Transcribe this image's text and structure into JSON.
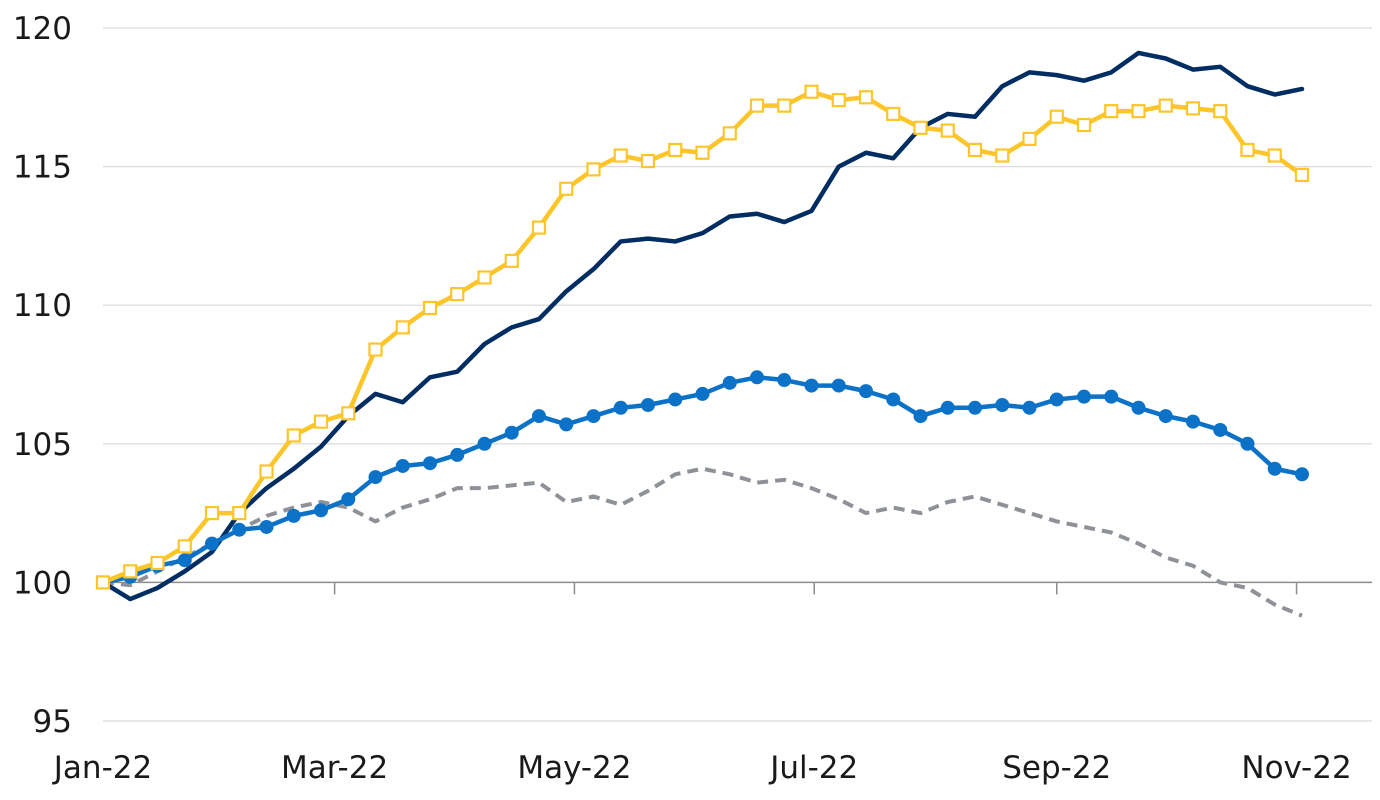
{
  "chart_data": {
    "type": "line",
    "title": "",
    "xlabel": "",
    "ylabel": "",
    "ylim": [
      95,
      120
    ],
    "yticks": [
      95,
      100,
      105,
      110,
      115,
      120
    ],
    "grid": "horizontal",
    "baseline_value": 100,
    "x_tick_labels": [
      "Jan-22",
      "Mar-22",
      "May-22",
      "Jul-22",
      "Sep-22",
      "Nov-22"
    ],
    "x_tick_label_index": [
      0,
      8.5,
      17.3,
      26.1,
      35,
      43.8
    ],
    "x_tick_mark_index": [
      8.5,
      17.3,
      26.1,
      35,
      43.8
    ],
    "x_index_max": 45,
    "series": [
      {
        "color": "#002d62",
        "style": "solid",
        "marker": "none",
        "values": [
          100.0,
          99.4,
          99.8,
          100.4,
          101.1,
          102.5,
          103.4,
          104.1,
          104.9,
          106.0,
          106.8,
          106.5,
          107.4,
          107.6,
          108.6,
          109.2,
          109.5,
          110.5,
          111.3,
          112.3,
          112.4,
          112.3,
          112.6,
          113.2,
          113.3,
          113.0,
          113.4,
          115.0,
          115.5,
          115.3,
          116.4,
          116.9,
          116.8,
          117.9,
          118.4,
          118.3,
          118.1,
          118.4,
          119.1,
          118.9,
          118.5,
          118.6,
          117.9,
          117.6,
          117.8
        ]
      },
      {
        "color": "#fcc52a",
        "style": "solid",
        "marker": "open-square",
        "values": [
          100.0,
          100.4,
          100.7,
          101.3,
          102.5,
          102.5,
          104.0,
          105.3,
          105.8,
          106.1,
          108.4,
          109.2,
          109.9,
          110.4,
          111.0,
          111.6,
          112.8,
          114.2,
          114.9,
          115.4,
          115.2,
          115.6,
          115.5,
          116.2,
          117.2,
          117.2,
          117.7,
          117.4,
          117.5,
          116.9,
          116.4,
          116.3,
          115.6,
          115.4,
          116.0,
          116.8,
          116.5,
          117.0,
          117.0,
          117.2,
          117.1,
          117.0,
          115.6,
          115.4,
          114.7
        ]
      },
      {
        "color": "#0b72c7",
        "style": "solid",
        "marker": "filled-circle",
        "values": [
          100.0,
          100.2,
          100.6,
          100.8,
          101.4,
          101.9,
          102.0,
          102.4,
          102.6,
          103.0,
          103.8,
          104.2,
          104.3,
          104.6,
          105.0,
          105.4,
          106.0,
          105.7,
          106.0,
          106.3,
          106.4,
          106.6,
          106.8,
          107.2,
          107.4,
          107.3,
          107.1,
          107.1,
          106.9,
          106.6,
          106.0,
          106.3,
          106.3,
          106.4,
          106.3,
          106.6,
          106.7,
          106.7,
          106.3,
          106.0,
          105.8,
          105.5,
          105.0,
          104.1,
          103.9
        ]
      },
      {
        "color": "#8e9298",
        "style": "dashed",
        "marker": "none",
        "values": [
          100.0,
          99.9,
          100.4,
          100.9,
          101.4,
          101.9,
          102.4,
          102.7,
          102.9,
          102.7,
          102.2,
          102.7,
          103.0,
          103.4,
          103.4,
          103.5,
          103.6,
          102.9,
          103.1,
          102.8,
          103.3,
          103.9,
          104.1,
          103.9,
          103.6,
          103.7,
          103.4,
          103.0,
          102.5,
          102.7,
          102.5,
          102.9,
          103.1,
          102.8,
          102.5,
          102.2,
          102.0,
          101.8,
          101.4,
          100.9,
          100.6,
          100.0,
          99.8,
          99.2,
          98.8
        ]
      }
    ]
  }
}
